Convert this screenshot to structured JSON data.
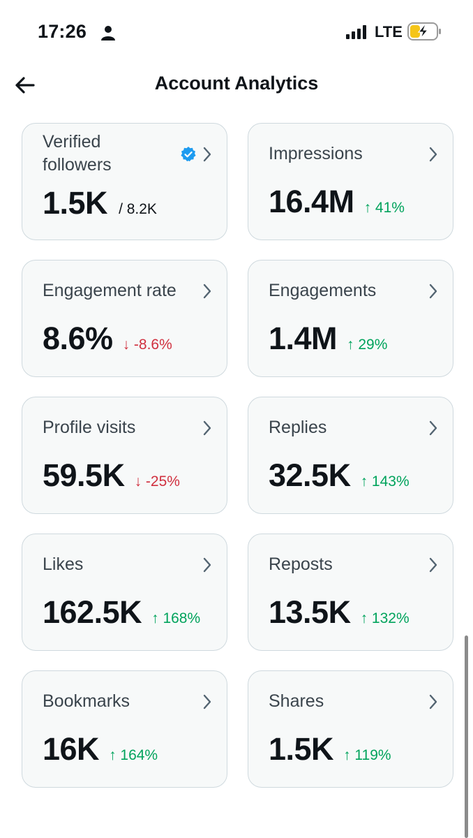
{
  "status_bar": {
    "time": "17:26",
    "network": "LTE",
    "icons": [
      "person-icon",
      "signal-icon",
      "battery-charging-icon"
    ]
  },
  "header": {
    "title": "Account Analytics",
    "back_icon": "arrow-left-icon"
  },
  "colors": {
    "positive": "#00a35c",
    "negative": "#d0303f",
    "verified": "#1d9bf0",
    "card_bg": "#f7f9f9",
    "card_border": "#cfd9de"
  },
  "metrics": [
    {
      "label": "Verified followers",
      "value": "1.5K",
      "total": "/ 8.2K",
      "verified": true
    },
    {
      "label": "Impressions",
      "value": "16.4M",
      "change": "↑ 41%",
      "direction": "up"
    },
    {
      "label": "Engagement rate",
      "value": "8.6%",
      "change": "↓ -8.6%",
      "direction": "down"
    },
    {
      "label": "Engagements",
      "value": "1.4M",
      "change": "↑ 29%",
      "direction": "up"
    },
    {
      "label": "Profile visits",
      "value": "59.5K",
      "change": "↓ -25%",
      "direction": "down"
    },
    {
      "label": "Replies",
      "value": "32.5K",
      "change": "↑ 143%",
      "direction": "up"
    },
    {
      "label": "Likes",
      "value": "162.5K",
      "change": "↑ 168%",
      "direction": "up"
    },
    {
      "label": "Reposts",
      "value": "13.5K",
      "change": "↑ 132%",
      "direction": "up"
    },
    {
      "label": "Bookmarks",
      "value": "16K",
      "change": "↑ 164%",
      "direction": "up"
    },
    {
      "label": "Shares",
      "value": "1.5K",
      "change": "↑ 119%",
      "direction": "up"
    }
  ]
}
